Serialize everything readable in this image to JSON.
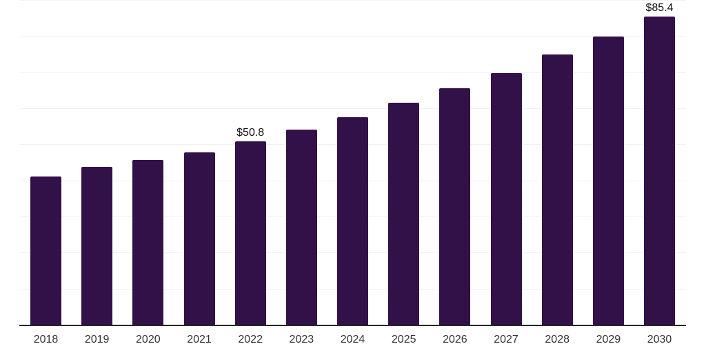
{
  "chart_data": {
    "type": "bar",
    "categories": [
      "2018",
      "2019",
      "2020",
      "2021",
      "2022",
      "2023",
      "2024",
      "2025",
      "2026",
      "2027",
      "2028",
      "2029",
      "2030"
    ],
    "values": [
      41.1,
      43.7,
      45.6,
      47.8,
      50.8,
      54.1,
      57.6,
      61.5,
      65.6,
      69.8,
      74.9,
      79.9,
      85.4
    ],
    "data_labels": [
      "",
      "",
      "",
      "",
      "$50.8",
      "",
      "",
      "",
      "",
      "",
      "",
      "",
      "$85.4"
    ],
    "title": "",
    "xlabel": "",
    "ylabel": "",
    "ylim": [
      0,
      90
    ],
    "grid": true,
    "grid_interval": 10,
    "legend": "none",
    "colors": {
      "bar": "#321149",
      "gridline": "#f2f2f2",
      "axis_line": "#262626",
      "tick_label": "#333333",
      "data_label": "#111111",
      "background": "#ffffff"
    }
  }
}
